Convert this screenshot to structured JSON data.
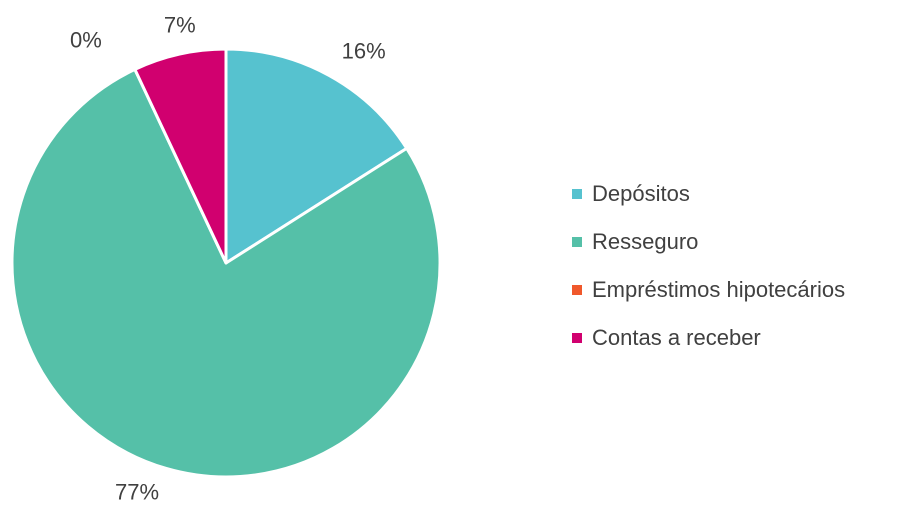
{
  "chart_data": {
    "type": "pie",
    "title": "",
    "legend_position": "right",
    "slices": [
      {
        "label": "Depósitos",
        "value": 16,
        "display": "16%",
        "color": "#56C2CF"
      },
      {
        "label": "Resseguro",
        "value": 77,
        "display": "77%",
        "color": "#55C0A8"
      },
      {
        "label": "Empréstimos hipotecários",
        "value": 0,
        "display": "0%",
        "color": "#F0582B"
      },
      {
        "label": "Contas a receber",
        "value": 7,
        "display": "7%",
        "color": "#D1006F"
      }
    ]
  }
}
